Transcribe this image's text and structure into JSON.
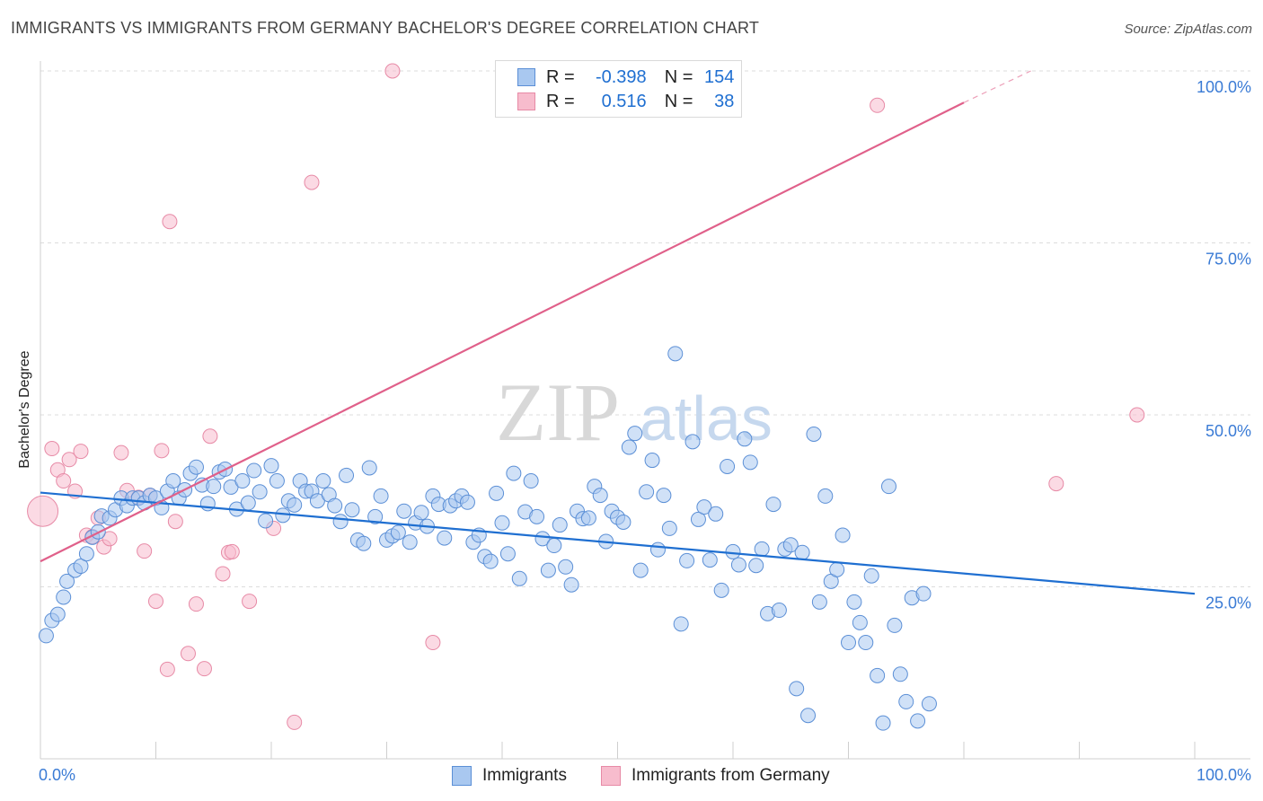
{
  "header": {
    "title": "IMMIGRANTS VS IMMIGRANTS FROM GERMANY BACHELOR'S DEGREE CORRELATION CHART",
    "source": "Source: ZipAtlas.com"
  },
  "watermark": {
    "zip": "ZIP",
    "atlas": "atlas"
  },
  "legend": {
    "rows": [
      {
        "r_label": "R =",
        "r_value": "-0.398",
        "n_label": "N =",
        "n_value": "154"
      },
      {
        "r_label": "R =",
        "r_value": "0.516",
        "n_label": "N =",
        "n_value": "38"
      }
    ],
    "bottom": [
      "Immigrants",
      "Immigrants from Germany"
    ]
  },
  "colors": {
    "blue_fill": "#a9c8f0",
    "blue_stroke": "#5b8fd6",
    "blue_line": "#1f6fd1",
    "pink_fill": "#f7bccd",
    "pink_stroke": "#e78aa6",
    "pink_line": "#e0608a",
    "axis_text": "#3a7bd5"
  },
  "chart_data": {
    "type": "scatter",
    "title": "IMMIGRANTS VS IMMIGRANTS FROM GERMANY BACHELOR'S DEGREE CORRELATION CHART",
    "xlabel": "",
    "ylabel": "Bachelor's Degree",
    "xlim": [
      0,
      100
    ],
    "ylim": [
      0,
      100
    ],
    "x_tick_labels": [
      "0.0%",
      "100.0%"
    ],
    "y_tick_labels": [
      "25.0%",
      "50.0%",
      "75.0%",
      "100.0%"
    ],
    "y_ticks": [
      25,
      50,
      75,
      100
    ],
    "grid": true,
    "series": [
      {
        "name": "Immigrants",
        "r": -0.398,
        "n": 154,
        "trend": {
          "x0": 0,
          "y0": 38.7,
          "x1": 100,
          "y1": 24.0
        },
        "points": [
          [
            0.5,
            17.9
          ],
          [
            1,
            20.1
          ],
          [
            1.5,
            21.0
          ],
          [
            2,
            23.5
          ],
          [
            2.3,
            25.8
          ],
          [
            3,
            27.4
          ],
          [
            3.5,
            28.0
          ],
          [
            4,
            29.8
          ],
          [
            4.5,
            32.2
          ],
          [
            5,
            33.0
          ],
          [
            5.3,
            35.3
          ],
          [
            6,
            35.0
          ],
          [
            6.5,
            36.2
          ],
          [
            7,
            37.9
          ],
          [
            7.5,
            36.8
          ],
          [
            8,
            37.9
          ],
          [
            8.5,
            37.9
          ],
          [
            9,
            37.2
          ],
          [
            9.5,
            38.3
          ],
          [
            10,
            37.9
          ],
          [
            10.5,
            36.5
          ],
          [
            11,
            38.9
          ],
          [
            11.5,
            40.4
          ],
          [
            12,
            37.9
          ],
          [
            12.5,
            39.1
          ],
          [
            13,
            41.5
          ],
          [
            13.5,
            42.4
          ],
          [
            14,
            39.8
          ],
          [
            14.5,
            37.1
          ],
          [
            15,
            39.6
          ],
          [
            15.5,
            41.7
          ],
          [
            16,
            42.1
          ],
          [
            16.5,
            39.5
          ],
          [
            17,
            36.3
          ],
          [
            17.5,
            40.4
          ],
          [
            18,
            37.2
          ],
          [
            18.5,
            41.9
          ],
          [
            19,
            38.8
          ],
          [
            19.5,
            34.6
          ],
          [
            20,
            42.6
          ],
          [
            20.5,
            40.4
          ],
          [
            21,
            35.4
          ],
          [
            21.5,
            37.5
          ],
          [
            22,
            36.9
          ],
          [
            22.5,
            40.4
          ],
          [
            23,
            38.9
          ],
          [
            23.5,
            38.9
          ],
          [
            24,
            37.5
          ],
          [
            24.5,
            40.4
          ],
          [
            25,
            38.4
          ],
          [
            25.5,
            36.8
          ],
          [
            26,
            34.5
          ],
          [
            26.5,
            41.2
          ],
          [
            27,
            36.2
          ],
          [
            27.5,
            31.8
          ],
          [
            28,
            31.3
          ],
          [
            28.5,
            42.3
          ],
          [
            29,
            35.2
          ],
          [
            29.5,
            38.2
          ],
          [
            30,
            31.8
          ],
          [
            30.5,
            32.4
          ],
          [
            31,
            32.9
          ],
          [
            31.5,
            36.0
          ],
          [
            32,
            31.5
          ],
          [
            32.5,
            34.3
          ],
          [
            33,
            35.8
          ],
          [
            33.5,
            33.8
          ],
          [
            34,
            38.2
          ],
          [
            34.5,
            37.0
          ],
          [
            35,
            32.1
          ],
          [
            35.5,
            36.8
          ],
          [
            36,
            37.5
          ],
          [
            36.5,
            38.2
          ],
          [
            37,
            37.3
          ],
          [
            37.5,
            31.5
          ],
          [
            38,
            32.5
          ],
          [
            38.5,
            29.4
          ],
          [
            39,
            28.7
          ],
          [
            39.5,
            38.6
          ],
          [
            40,
            34.3
          ],
          [
            40.5,
            29.8
          ],
          [
            41,
            41.5
          ],
          [
            41.5,
            26.2
          ],
          [
            42,
            35.9
          ],
          [
            42.5,
            40.4
          ],
          [
            43,
            35.2
          ],
          [
            43.5,
            32.0
          ],
          [
            44,
            27.4
          ],
          [
            44.5,
            31.0
          ],
          [
            45,
            34.0
          ],
          [
            45.5,
            27.9
          ],
          [
            46,
            25.3
          ],
          [
            46.5,
            36.0
          ],
          [
            47,
            34.9
          ],
          [
            47.5,
            35.0
          ],
          [
            48,
            39.6
          ],
          [
            48.5,
            38.3
          ],
          [
            49,
            31.6
          ],
          [
            49.5,
            36.0
          ],
          [
            50,
            35.1
          ],
          [
            50.5,
            34.4
          ],
          [
            51,
            45.3
          ],
          [
            51.5,
            47.3
          ],
          [
            52,
            27.4
          ],
          [
            52.5,
            38.8
          ],
          [
            53,
            43.4
          ],
          [
            53.5,
            30.4
          ],
          [
            54,
            38.3
          ],
          [
            54.5,
            33.5
          ],
          [
            55,
            58.9
          ],
          [
            55.5,
            19.6
          ],
          [
            56,
            28.8
          ],
          [
            56.5,
            46.1
          ],
          [
            57,
            34.8
          ],
          [
            57.5,
            36.6
          ],
          [
            58,
            28.9
          ],
          [
            58.5,
            35.6
          ],
          [
            59,
            24.5
          ],
          [
            59.5,
            42.5
          ],
          [
            60,
            30.1
          ],
          [
            60.5,
            28.2
          ],
          [
            61,
            46.5
          ],
          [
            61.5,
            43.1
          ],
          [
            62,
            28.1
          ],
          [
            62.5,
            30.5
          ],
          [
            63,
            21.1
          ],
          [
            63.5,
            37.0
          ],
          [
            64,
            21.6
          ],
          [
            64.5,
            30.5
          ],
          [
            65,
            31.1
          ],
          [
            65.5,
            10.2
          ],
          [
            66,
            30.0
          ],
          [
            66.5,
            6.3
          ],
          [
            67,
            47.2
          ],
          [
            67.5,
            22.8
          ],
          [
            68,
            38.2
          ],
          [
            68.5,
            25.8
          ],
          [
            69,
            27.5
          ],
          [
            69.5,
            32.5
          ],
          [
            70,
            16.9
          ],
          [
            70.5,
            22.8
          ],
          [
            71,
            19.8
          ],
          [
            71.5,
            16.9
          ],
          [
            72,
            26.6
          ],
          [
            72.5,
            12.1
          ],
          [
            73,
            5.2
          ],
          [
            73.5,
            39.6
          ],
          [
            74,
            19.4
          ],
          [
            74.5,
            12.3
          ],
          [
            75,
            8.3
          ],
          [
            75.5,
            23.4
          ],
          [
            76,
            5.5
          ],
          [
            76.5,
            24.0
          ],
          [
            77,
            8.0
          ]
        ]
      },
      {
        "name": "Immigrants from Germany",
        "r": 0.516,
        "n": 38,
        "trend": {
          "x0": 0,
          "y0": 28.7,
          "x1": 80,
          "y1": 95.4
        },
        "trend_dashed_to": {
          "x": 85.8,
          "y": 100
        },
        "points": [
          [
            0.2,
            36.0
          ],
          [
            1,
            45.1
          ],
          [
            1.5,
            42.0
          ],
          [
            2,
            40.4
          ],
          [
            2.5,
            43.5
          ],
          [
            3,
            38.9
          ],
          [
            3.5,
            44.7
          ],
          [
            4,
            32.5
          ],
          [
            4.5,
            32.3
          ],
          [
            5,
            35.0
          ],
          [
            5.5,
            30.8
          ],
          [
            6,
            32.0
          ],
          [
            7,
            44.5
          ],
          [
            7.5,
            39.0
          ],
          [
            8.5,
            38.0
          ],
          [
            9,
            30.2
          ],
          [
            9.5,
            38.3
          ],
          [
            10,
            22.9
          ],
          [
            10.5,
            44.8
          ],
          [
            11,
            13.0
          ],
          [
            11.2,
            78.1
          ],
          [
            11.7,
            34.5
          ],
          [
            12.8,
            15.3
          ],
          [
            13.5,
            22.5
          ],
          [
            14.2,
            13.1
          ],
          [
            14.7,
            46.9
          ],
          [
            15.8,
            26.9
          ],
          [
            16.3,
            30.0
          ],
          [
            16.6,
            30.1
          ],
          [
            18.1,
            22.9
          ],
          [
            20.2,
            33.5
          ],
          [
            22,
            5.3
          ],
          [
            23.5,
            83.8
          ],
          [
            30.5,
            100.0
          ],
          [
            34,
            16.9
          ],
          [
            72.5,
            95.0
          ],
          [
            88,
            40.0
          ],
          [
            95,
            50.0
          ]
        ]
      }
    ]
  }
}
